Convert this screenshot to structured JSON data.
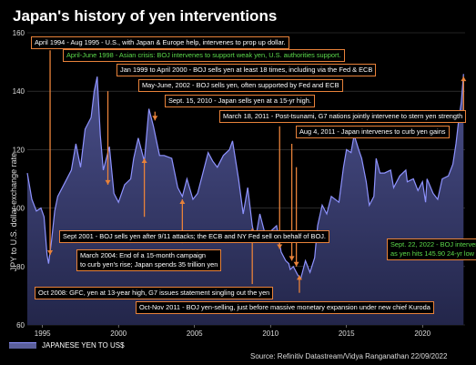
{
  "chart_data": {
    "type": "area",
    "title": "Japan's history of yen interventions",
    "ylabel": "JPY to U.S. dollar exchange rate",
    "ylim": [
      60,
      160
    ],
    "yticks": [
      60,
      80,
      100,
      120,
      140,
      160
    ],
    "xlim": [
      1994.0,
      2022.8
    ],
    "xticks": [
      1995,
      2000,
      2005,
      2010,
      2015,
      2020
    ],
    "grid": "horizontal",
    "series": [
      {
        "name": "JAPANESE YEN TO US$",
        "color": "#8e93ff",
        "points": [
          [
            1994.0,
            112
          ],
          [
            1994.3,
            103
          ],
          [
            1994.6,
            99
          ],
          [
            1994.9,
            100
          ],
          [
            1995.1,
            97
          ],
          [
            1995.3,
            84
          ],
          [
            1995.4,
            81
          ],
          [
            1995.6,
            89
          ],
          [
            1995.8,
            99
          ],
          [
            1996.0,
            104
          ],
          [
            1996.5,
            109
          ],
          [
            1996.9,
            113
          ],
          [
            1997.2,
            122
          ],
          [
            1997.5,
            114
          ],
          [
            1997.8,
            127
          ],
          [
            1998.2,
            131
          ],
          [
            1998.4,
            140
          ],
          [
            1998.6,
            145
          ],
          [
            1998.8,
            125
          ],
          [
            1999.0,
            113
          ],
          [
            1999.4,
            121
          ],
          [
            1999.7,
            105
          ],
          [
            2000.0,
            102
          ],
          [
            2000.4,
            108
          ],
          [
            2000.8,
            110
          ],
          [
            2001.0,
            117
          ],
          [
            2001.3,
            124
          ],
          [
            2001.7,
            116
          ],
          [
            2002.0,
            134
          ],
          [
            2002.3,
            128
          ],
          [
            2002.7,
            118
          ],
          [
            2003.0,
            118
          ],
          [
            2003.5,
            117
          ],
          [
            2003.9,
            107
          ],
          [
            2004.2,
            104
          ],
          [
            2004.5,
            110
          ],
          [
            2004.9,
            103
          ],
          [
            2005.2,
            105
          ],
          [
            2005.5,
            111
          ],
          [
            2005.9,
            119
          ],
          [
            2006.2,
            116
          ],
          [
            2006.5,
            114
          ],
          [
            2006.9,
            118
          ],
          [
            2007.3,
            120
          ],
          [
            2007.5,
            123
          ],
          [
            2007.9,
            110
          ],
          [
            2008.2,
            98
          ],
          [
            2008.5,
            107
          ],
          [
            2008.8,
            94
          ],
          [
            2009.0,
            89
          ],
          [
            2009.3,
            98
          ],
          [
            2009.7,
            90
          ],
          [
            2010.0,
            92
          ],
          [
            2010.4,
            94
          ],
          [
            2010.7,
            85
          ],
          [
            2011.0,
            82
          ],
          [
            2011.2,
            81
          ],
          [
            2011.3,
            79
          ],
          [
            2011.5,
            80
          ],
          [
            2011.8,
            77
          ],
          [
            2012.0,
            76
          ],
          [
            2012.3,
            82
          ],
          [
            2012.6,
            78
          ],
          [
            2012.9,
            83
          ],
          [
            2013.1,
            94
          ],
          [
            2013.4,
            101
          ],
          [
            2013.7,
            98
          ],
          [
            2014.0,
            104
          ],
          [
            2014.5,
            102
          ],
          [
            2014.8,
            114
          ],
          [
            2015.0,
            120
          ],
          [
            2015.3,
            119
          ],
          [
            2015.5,
            125
          ],
          [
            2015.8,
            120
          ],
          [
            2016.0,
            117
          ],
          [
            2016.3,
            109
          ],
          [
            2016.5,
            101
          ],
          [
            2016.8,
            104
          ],
          [
            2016.95,
            117
          ],
          [
            2017.2,
            112
          ],
          [
            2017.5,
            112
          ],
          [
            2017.9,
            113
          ],
          [
            2018.1,
            107
          ],
          [
            2018.5,
            111
          ],
          [
            2018.9,
            113
          ],
          [
            2019.0,
            109
          ],
          [
            2019.4,
            110
          ],
          [
            2019.7,
            106
          ],
          [
            2020.0,
            109
          ],
          [
            2020.2,
            102
          ],
          [
            2020.3,
            110
          ],
          [
            2020.7,
            105
          ],
          [
            2021.0,
            103
          ],
          [
            2021.3,
            110
          ],
          [
            2021.7,
            111
          ],
          [
            2022.0,
            115
          ],
          [
            2022.2,
            122
          ],
          [
            2022.4,
            131
          ],
          [
            2022.55,
            136
          ],
          [
            2022.7,
            145.9
          ]
        ]
      }
    ],
    "annotations": [
      {
        "id": "ann1994",
        "text": "April 1994 - Aug 1995 - U.S., with Japan & Europe help, intervenes to prop up dollar.",
        "color": "white",
        "pointer": [
          [
            1995.5,
            154
          ],
          [
            1995.5,
            84
          ]
        ]
      },
      {
        "id": "ann1998",
        "text": "April-June 1998 - Asian crisis: BOJ intervenes to support weak yen, U.S. authorities support.",
        "color": "green",
        "pointer": [
          [
            1998.6,
            148
          ],
          [
            1998.6,
            147
          ]
        ]
      },
      {
        "id": "ann1999",
        "text": "Jan 1999 to April 2000 - BOJ sells yen at least 18 times, including via the Fed & ECB",
        "color": "white",
        "pointer": [
          [
            1999.3,
            140
          ],
          [
            1999.3,
            108
          ]
        ]
      },
      {
        "id": "ann2002",
        "text": "May-June, 2002 - BOJ sells yen, often supported by Fed and ECB",
        "color": "white",
        "pointer": [
          [
            2002.4,
            133
          ],
          [
            2002.4,
            130
          ]
        ]
      },
      {
        "id": "ann2010",
        "text": "Sept. 15, 2010 - Japan sells yen at a 15-yr high.",
        "color": "white",
        "pointer": [
          [
            2010.6,
            128
          ],
          [
            2010.6,
            86
          ]
        ]
      },
      {
        "id": "ann2011mar",
        "text": "March 18, 2011 - Post-tsunami, G7 nations jointly intervene to stern yen strength",
        "color": "white",
        "pointer": [
          [
            2011.4,
            122
          ],
          [
            2011.4,
            82
          ]
        ]
      },
      {
        "id": "ann2011aug",
        "text": "Aug 4, 2011 - Japan intervenes to curb yen gains",
        "color": "white",
        "pointer": [
          [
            2011.7,
            114
          ],
          [
            2011.7,
            80
          ]
        ]
      },
      {
        "id": "ann2001",
        "text": "Sept 2001 - BOJ sells yen after 9/11 attacks; the ECB and NY Fed sell on behalf of BOJ.",
        "color": "white",
        "pointer": [
          [
            2001.7,
            97
          ],
          [
            2001.7,
            117
          ]
        ]
      },
      {
        "id": "ann2004",
        "text": "March 2004: End of a 15-month campaign\nto curb yen's rise; Japan spends 35 trillion yen",
        "color": "white",
        "pointer": [
          [
            2004.2,
            88
          ],
          [
            2004.2,
            103
          ]
        ]
      },
      {
        "id": "ann2008",
        "text": "Oct 2008: GFC, yen at 13-year high, G7 issues statement singling out the yen",
        "color": "white",
        "pointer": [
          [
            2008.8,
            74
          ],
          [
            2008.8,
            93
          ]
        ]
      },
      {
        "id": "ann2011nov",
        "text": "Oct-Nov 2011 - BOJ yen-selling, just before massive monetary expansion under new chief Kuroda",
        "color": "white",
        "pointer": [
          [
            2011.9,
            71
          ],
          [
            2011.9,
            77
          ]
        ]
      },
      {
        "id": "ann2022",
        "text": "Sept. 22, 2022 - BOJ intervenes\nas yen hits 145.90 24-yr low",
        "color": "green",
        "pointer": [
          [
            2022.7,
            132
          ],
          [
            2022.7,
            145
          ]
        ]
      }
    ]
  },
  "source": "Source: Refinitiv Datastream/Vidya Ranganathan 22/09/2022"
}
